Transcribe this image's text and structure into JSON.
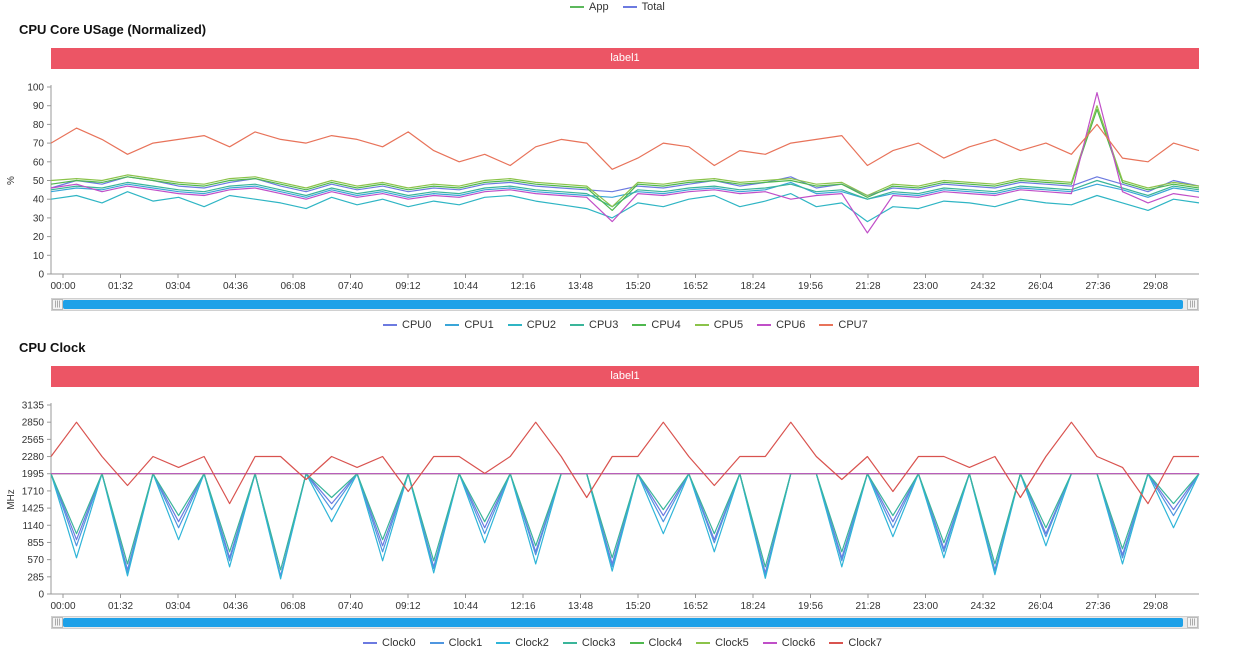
{
  "top_legend": [
    {
      "name": "App",
      "color": "#5cb85c"
    },
    {
      "name": "Total",
      "color": "#6c7ae0"
    }
  ],
  "chart_data": [
    {
      "type": "line",
      "title": "CPU Core USage (Normalized)",
      "banner": "label1",
      "ylabel": "%",
      "ylim": [
        0,
        100
      ],
      "yticks": [
        "0",
        "10",
        "20",
        "30",
        "40",
        "50",
        "60",
        "70",
        "80",
        "90",
        "100"
      ],
      "x_tick_labels": [
        "00:00",
        "01:32",
        "03:04",
        "04:36",
        "06:08",
        "07:40",
        "09:12",
        "10:44",
        "12:16",
        "13:48",
        "15:20",
        "16:52",
        "18:24",
        "19:56",
        "21:28",
        "23:00",
        "24:32",
        "26:04",
        "27:36",
        "29:08"
      ],
      "grid": false,
      "legend_position": "bottom",
      "series": [
        {
          "name": "CPU0",
          "color": "#6c7ae0",
          "values": [
            46,
            50,
            48,
            52,
            50,
            47,
            46,
            49,
            51,
            47,
            44,
            48,
            45,
            47,
            44,
            46,
            45,
            48,
            49,
            47,
            46,
            45,
            44,
            47,
            46,
            48,
            50,
            47,
            49,
            52,
            46,
            48,
            42,
            46,
            45,
            48,
            47,
            46,
            49,
            48,
            47,
            52,
            48,
            44,
            50,
            47
          ]
        },
        {
          "name": "CPU1",
          "color": "#3aa6d8",
          "values": [
            44,
            46,
            45,
            48,
            46,
            44,
            43,
            46,
            47,
            44,
            41,
            45,
            42,
            44,
            41,
            43,
            42,
            45,
            46,
            44,
            43,
            42,
            41,
            44,
            43,
            45,
            46,
            44,
            45,
            49,
            43,
            44,
            40,
            43,
            42,
            45,
            44,
            43,
            46,
            45,
            44,
            48,
            45,
            41,
            46,
            44
          ]
        },
        {
          "name": "CPU2",
          "color": "#2fb5c4",
          "values": [
            40,
            42,
            38,
            44,
            39,
            41,
            36,
            42,
            40,
            38,
            35,
            41,
            37,
            40,
            36,
            39,
            37,
            41,
            42,
            39,
            37,
            35,
            30,
            38,
            36,
            40,
            42,
            36,
            39,
            43,
            36,
            38,
            28,
            36,
            35,
            39,
            38,
            36,
            40,
            38,
            37,
            42,
            38,
            34,
            40,
            38
          ]
        },
        {
          "name": "CPU3",
          "color": "#3ab59a",
          "values": [
            45,
            47,
            46,
            49,
            47,
            45,
            44,
            47,
            48,
            45,
            42,
            46,
            43,
            45,
            42,
            44,
            43,
            46,
            47,
            45,
            44,
            43,
            36,
            45,
            44,
            46,
            47,
            45,
            46,
            48,
            44,
            45,
            40,
            44,
            43,
            46,
            45,
            44,
            47,
            46,
            45,
            50,
            46,
            42,
            47,
            45
          ]
        },
        {
          "name": "CPU4",
          "color": "#4fb84f",
          "values": [
            48,
            50,
            49,
            52,
            50,
            48,
            47,
            50,
            51,
            48,
            45,
            49,
            46,
            48,
            45,
            47,
            46,
            49,
            50,
            48,
            47,
            46,
            34,
            48,
            47,
            49,
            50,
            48,
            49,
            50,
            47,
            48,
            41,
            47,
            46,
            49,
            48,
            47,
            50,
            49,
            48,
            88,
            49,
            45,
            48,
            46
          ]
        },
        {
          "name": "CPU5",
          "color": "#8bc34a",
          "values": [
            50,
            51,
            50,
            53,
            51,
            49,
            48,
            51,
            52,
            49,
            46,
            50,
            47,
            49,
            46,
            48,
            47,
            50,
            51,
            49,
            48,
            47,
            36,
            49,
            48,
            50,
            51,
            49,
            50,
            51,
            48,
            49,
            42,
            48,
            47,
            50,
            49,
            48,
            51,
            50,
            49,
            90,
            50,
            46,
            49,
            47
          ]
        },
        {
          "name": "CPU6",
          "color": "#c04fc8",
          "values": [
            46,
            48,
            44,
            47,
            45,
            43,
            42,
            45,
            46,
            43,
            40,
            44,
            41,
            43,
            40,
            42,
            41,
            44,
            45,
            43,
            42,
            41,
            28,
            43,
            42,
            44,
            45,
            43,
            44,
            40,
            42,
            43,
            22,
            42,
            41,
            44,
            43,
            42,
            45,
            44,
            43,
            97,
            44,
            38,
            43,
            41
          ]
        },
        {
          "name": "CPU7",
          "color": "#e8735a",
          "values": [
            70,
            78,
            72,
            64,
            70,
            72,
            74,
            68,
            76,
            72,
            70,
            74,
            72,
            68,
            76,
            66,
            60,
            64,
            58,
            68,
            72,
            70,
            56,
            62,
            70,
            68,
            58,
            66,
            64,
            70,
            72,
            74,
            58,
            66,
            70,
            62,
            68,
            72,
            66,
            70,
            64,
            80,
            62,
            60,
            70,
            66
          ]
        }
      ]
    },
    {
      "type": "line",
      "title": "CPU Clock",
      "banner": "label1",
      "ylabel": "MHz",
      "ylim": [
        0,
        3135
      ],
      "yticks": [
        "0",
        "285",
        "570",
        "855",
        "1140",
        "1425",
        "1710",
        "1995",
        "2280",
        "2565",
        "2850",
        "3135"
      ],
      "x_tick_labels": [
        "00:00",
        "01:32",
        "03:04",
        "04:36",
        "06:08",
        "07:40",
        "09:12",
        "10:44",
        "12:16",
        "13:48",
        "15:20",
        "16:52",
        "18:24",
        "19:56",
        "21:28",
        "23:00",
        "24:32",
        "26:04",
        "27:36",
        "29:08"
      ],
      "grid": false,
      "legend_position": "bottom",
      "series": [
        {
          "name": "Clock0",
          "color": "#6c7ae0",
          "values": [
            1995,
            900,
            1995,
            400,
            1995,
            1200,
            1995,
            600,
            1995,
            300,
            1995,
            1500,
            1995,
            800,
            1995,
            450,
            1995,
            1100,
            1995,
            700,
            1995,
            1995,
            500,
            1995,
            1300,
            1995,
            900,
            1995,
            350,
            1995,
            1995,
            600,
            1995,
            1200,
            1995,
            750,
            1995,
            400,
            1995,
            1000,
            1995,
            1995,
            650,
            1995,
            1400,
            1995
          ]
        },
        {
          "name": "Clock1",
          "color": "#4f96e0",
          "values": [
            1995,
            800,
            1995,
            350,
            1995,
            1100,
            1995,
            550,
            1995,
            280,
            1995,
            1400,
            1995,
            700,
            1995,
            420,
            1995,
            1000,
            1995,
            650,
            1995,
            1995,
            450,
            1995,
            1200,
            1995,
            850,
            1995,
            300,
            1995,
            1995,
            550,
            1995,
            1100,
            1995,
            700,
            1995,
            380,
            1995,
            950,
            1995,
            1995,
            600,
            1995,
            1300,
            1995
          ]
        },
        {
          "name": "Clock2",
          "color": "#2fb5d8",
          "values": [
            1995,
            600,
            1995,
            300,
            1995,
            900,
            1995,
            450,
            1995,
            250,
            1995,
            1200,
            1995,
            550,
            1995,
            350,
            1995,
            850,
            1995,
            500,
            1995,
            1995,
            380,
            1995,
            1000,
            1995,
            700,
            1995,
            260,
            1995,
            1995,
            450,
            1995,
            950,
            1995,
            600,
            1995,
            320,
            1995,
            800,
            1995,
            1995,
            500,
            1995,
            1100,
            1995
          ]
        },
        {
          "name": "Clock3",
          "color": "#3ab59a",
          "values": [
            1995,
            1000,
            1995,
            500,
            1995,
            1300,
            1995,
            700,
            1995,
            400,
            1995,
            1600,
            1995,
            900,
            1995,
            550,
            1995,
            1200,
            1995,
            800,
            1995,
            1995,
            600,
            1995,
            1400,
            1995,
            1000,
            1995,
            450,
            1995,
            1995,
            700,
            1995,
            1300,
            1995,
            850,
            1995,
            500,
            1995,
            1100,
            1995,
            1995,
            750,
            1995,
            1500,
            1995
          ]
        },
        {
          "name": "Clock4",
          "color": "#4fb84f",
          "values": [
            1995,
            1995,
            1995,
            1995,
            1995,
            1995,
            1995,
            1995,
            1995,
            1995,
            1995,
            1995,
            1995,
            1995,
            1995,
            1995,
            1995,
            1995,
            1995,
            1995,
            1995,
            1995,
            1995,
            1995,
            1995,
            1995,
            1995,
            1995,
            1995,
            1995,
            1995,
            1995,
            1995,
            1995,
            1995,
            1995,
            1995,
            1995,
            1995,
            1995,
            1995,
            1995,
            1995,
            1995,
            1995,
            1995
          ]
        },
        {
          "name": "Clock5",
          "color": "#8bc34a",
          "values": [
            1995,
            1995,
            1995,
            1995,
            1995,
            1995,
            1995,
            1995,
            1995,
            1995,
            1995,
            1995,
            1995,
            1995,
            1995,
            1995,
            1995,
            1995,
            1995,
            1995,
            1995,
            1995,
            1995,
            1995,
            1995,
            1995,
            1995,
            1995,
            1995,
            1995,
            1995,
            1995,
            1995,
            1995,
            1995,
            1995,
            1995,
            1995,
            1995,
            1995,
            1995,
            1995,
            1995,
            1995,
            1995,
            1995
          ]
        },
        {
          "name": "Clock6",
          "color": "#c04fc8",
          "values": [
            1995,
            1995,
            1995,
            1995,
            1995,
            1995,
            1995,
            1995,
            1995,
            1995,
            1995,
            1995,
            1995,
            1995,
            1995,
            1995,
            1995,
            1995,
            1995,
            1995,
            1995,
            1995,
            1995,
            1995,
            1995,
            1995,
            1995,
            1995,
            1995,
            1995,
            1995,
            1995,
            1995,
            1995,
            1995,
            1995,
            1995,
            1995,
            1995,
            1995,
            1995,
            1995,
            1995,
            1995,
            1995,
            1995
          ]
        },
        {
          "name": "Clock7",
          "color": "#d9534f",
          "values": [
            2280,
            2850,
            2280,
            1800,
            2280,
            2100,
            2280,
            1500,
            2280,
            2280,
            1900,
            2280,
            2100,
            2280,
            1700,
            2280,
            2280,
            2000,
            2280,
            2850,
            2280,
            1600,
            2280,
            2280,
            2850,
            2280,
            1800,
            2280,
            2280,
            2850,
            2280,
            1900,
            2280,
            1700,
            2280,
            2280,
            2100,
            2280,
            1600,
            2280,
            2850,
            2280,
            2100,
            1500,
            2280,
            2280
          ]
        }
      ]
    }
  ]
}
